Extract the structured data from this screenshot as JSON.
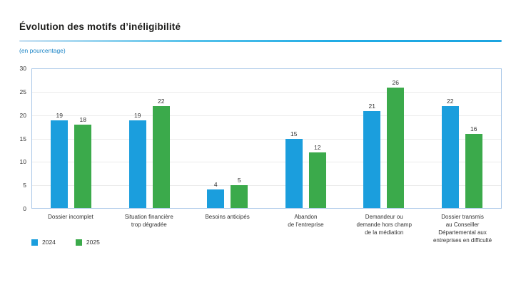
{
  "header": {
    "title": "Évolution des motifs d’inéligibilité",
    "subtitle": "(en pourcentage)"
  },
  "chart_data": {
    "type": "bar",
    "title": "Évolution des motifs d’inéligibilité",
    "subtitle": "(en pourcentage)",
    "ylabel": "",
    "xlabel": "",
    "ylim": [
      0,
      30
    ],
    "yticks": [
      0,
      5,
      10,
      15,
      20,
      25,
      30
    ],
    "grid": true,
    "legend_position": "bottom-left",
    "categories": [
      "Dossier incomplet",
      "Situation financière trop dégradée",
      "Besoins anticipés",
      "Abandon de l’entreprise",
      "Demandeur ou demande hors champ de la médiation",
      "Dossier transmis au Conseiller Départemental aux entreprises en difficulté"
    ],
    "category_lines": [
      [
        "Dossier incomplet"
      ],
      [
        "Situation financière",
        "trop dégradée"
      ],
      [
        "Besoins anticipés"
      ],
      [
        "Abandon",
        "de l’entreprise"
      ],
      [
        "Demandeur ou",
        "demande hors champ",
        "de la médiation"
      ],
      [
        "Dossier transmis",
        "au Conseiller",
        "Départemental aux",
        "entreprises en difficulté"
      ]
    ],
    "series": [
      {
        "name": "2024",
        "color": "#1b9edd",
        "values": [
          19,
          19,
          4,
          15,
          21,
          22
        ]
      },
      {
        "name": "2025",
        "color": "#3baa4b",
        "values": [
          18,
          22,
          5,
          12,
          26,
          16
        ]
      }
    ],
    "colors": {
      "frame_border": "#a9c7e8",
      "gridline": "#ebebeb",
      "title_text": "#1d1d1b",
      "subtitle_text": "#1e86c7",
      "tick_text": "#333333",
      "rule_gradient_start": "#cfe4f4",
      "rule_gradient_end": "#1ba4e0"
    }
  }
}
